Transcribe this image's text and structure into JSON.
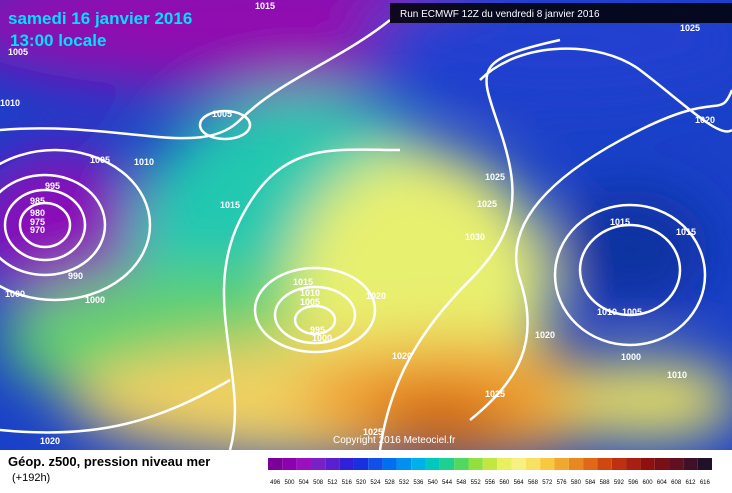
{
  "header": {
    "date": "samedi 16 janvier 2016",
    "time": "13:00 locale",
    "run": "Run ECMWF 12Z du vendredi 8 janvier 2016"
  },
  "isobar_labels": [
    "1015",
    "1005",
    "1010",
    "1005",
    "1005",
    "1010",
    "995",
    "985",
    "980",
    "975",
    "970",
    "990",
    "1000",
    "1000",
    "1015",
    "1015",
    "1010",
    "1005",
    "995",
    "1000",
    "1020",
    "1020",
    "1025",
    "1025",
    "1030",
    "1015",
    "1015",
    "1010",
    "1005",
    "1020",
    "1000",
    "1010",
    "1025",
    "1025",
    "1020",
    "1025",
    "1020"
  ],
  "copyright": "Copyright 2016 Meteociel.fr",
  "legend": {
    "title": "Géop. z500, pression niveau mer",
    "lead": "(+192h)",
    "labels": [
      "496",
      "500",
      "504",
      "508",
      "512",
      "516",
      "520",
      "524",
      "528",
      "532",
      "536",
      "540",
      "544",
      "548",
      "552",
      "556",
      "560",
      "564",
      "568",
      "572",
      "576",
      "580",
      "584",
      "588",
      "592",
      "596",
      "600",
      "604",
      "608",
      "612",
      "616"
    ],
    "colors": [
      "#7a0099",
      "#8c00b0",
      "#9a10c0",
      "#7a20c8",
      "#5a20d0",
      "#3020d8",
      "#1830e0",
      "#1050e8",
      "#0070f0",
      "#0090f0",
      "#00b0e8",
      "#00c8c0",
      "#20d090",
      "#50d860",
      "#90e040",
      "#c0e840",
      "#e8f060",
      "#f8f080",
      "#f8e060",
      "#f8c840",
      "#f0a830",
      "#e88820",
      "#e06818",
      "#d04810",
      "#c03010",
      "#a82010",
      "#901010",
      "#781018",
      "#601020",
      "#401028",
      "#201028"
    ]
  }
}
